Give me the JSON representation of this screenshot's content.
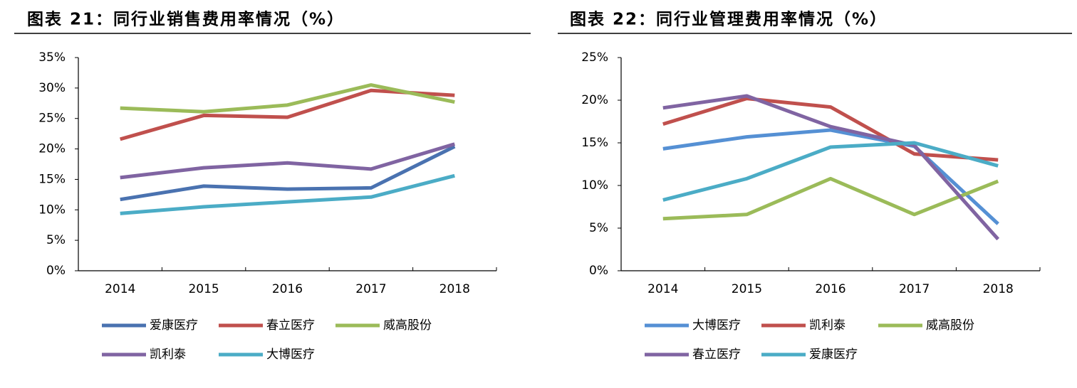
{
  "chart_data": [
    {
      "type": "line",
      "title": "图表 21：同行业销售费用率情况（%）",
      "categories": [
        "2014",
        "2015",
        "2016",
        "2017",
        "2018"
      ],
      "series": [
        {
          "name": "爱康医疗",
          "color": "#4a72b0",
          "values": [
            11.7,
            13.9,
            13.4,
            13.6,
            20.4
          ]
        },
        {
          "name": "春立医疗",
          "color": "#c0504d",
          "values": [
            21.6,
            25.5,
            25.2,
            29.6,
            28.8
          ]
        },
        {
          "name": "威高股份",
          "color": "#9bbb59",
          "values": [
            26.7,
            26.1,
            27.2,
            30.5,
            27.7
          ]
        },
        {
          "name": "凯利泰",
          "color": "#8064a2",
          "values": [
            15.3,
            16.9,
            17.7,
            16.7,
            20.8
          ]
        },
        {
          "name": "大博医疗",
          "color": "#4bacc6",
          "values": [
            9.4,
            10.5,
            11.3,
            12.1,
            15.6
          ]
        }
      ],
      "ylim": [
        0,
        35
      ],
      "yticks": [
        {
          "value": 0,
          "label": "0%"
        },
        {
          "value": 5,
          "label": "5%"
        },
        {
          "value": 10,
          "label": "10%"
        },
        {
          "value": 15,
          "label": "15%"
        },
        {
          "value": 20,
          "label": "20%"
        },
        {
          "value": 25,
          "label": "25%"
        },
        {
          "value": 30,
          "label": "30%"
        },
        {
          "value": 35,
          "label": "35%"
        }
      ]
    },
    {
      "type": "line",
      "title": "图表 22：同行业管理费用率情况（%）",
      "categories": [
        "2014",
        "2015",
        "2016",
        "2017",
        "2018"
      ],
      "series": [
        {
          "name": "大博医疗",
          "color": "#5590d4",
          "values": [
            14.3,
            15.7,
            16.5,
            14.6,
            5.5
          ]
        },
        {
          "name": "凯利泰",
          "color": "#c0504d",
          "values": [
            17.2,
            20.2,
            19.2,
            13.7,
            13.0
          ]
        },
        {
          "name": "威高股份",
          "color": "#9bbb59",
          "values": [
            6.1,
            6.6,
            10.8,
            6.6,
            10.5
          ]
        },
        {
          "name": "春立医疗",
          "color": "#8064a2",
          "values": [
            19.1,
            20.5,
            16.9,
            14.7,
            3.7
          ]
        },
        {
          "name": "爱康医疗",
          "color": "#4bacc6",
          "values": [
            8.3,
            10.8,
            14.5,
            15.0,
            12.3
          ]
        }
      ],
      "ylim": [
        0,
        25
      ],
      "yticks": [
        {
          "value": 0,
          "label": "0%"
        },
        {
          "value": 5,
          "label": "5%"
        },
        {
          "value": 10,
          "label": "10%"
        },
        {
          "value": 15,
          "label": "15%"
        },
        {
          "value": 20,
          "label": "20%"
        },
        {
          "value": 25,
          "label": "25%"
        }
      ]
    }
  ]
}
